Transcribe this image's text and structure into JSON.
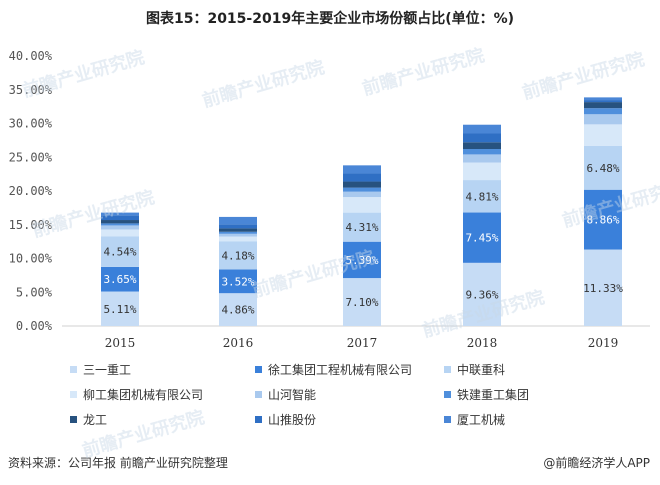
{
  "title": "图表15：2015-2019年主要企业市场份额占比(单位：%)",
  "source": "资料来源：公司年报 前瞻产业研究院整理",
  "credit": "@前瞻经济学人APP",
  "watermark": "前瞻产业研究院",
  "chart_data": {
    "type": "bar",
    "stacked": true,
    "categories": [
      "2015",
      "2016",
      "2017",
      "2018",
      "2019"
    ],
    "ylim": [
      0,
      40
    ],
    "ytick_labels": [
      "0.00%",
      "5.00%",
      "10.00%",
      "15.00%",
      "20.00%",
      "25.00%",
      "30.00%",
      "35.00%",
      "40.00%"
    ],
    "grid": false,
    "legend_position": "bottom",
    "series": [
      {
        "name": "三一重工",
        "color": "#c6dcf5",
        "values": [
          5.11,
          4.86,
          7.1,
          9.36,
          11.33
        ],
        "labels": [
          "5.11%",
          "4.86%",
          "7.10%",
          "9.36%",
          "11.33%"
        ]
      },
      {
        "name": "徐工集团工程机械有限公司",
        "color": "#3a80da",
        "values": [
          3.65,
          3.52,
          5.39,
          7.45,
          8.86
        ],
        "labels": [
          "3.65%",
          "3.52%",
          "5.39%",
          "7.45%",
          "8.86%"
        ]
      },
      {
        "name": "中联重科",
        "color": "#b7d4f3",
        "values": [
          4.54,
          4.18,
          4.31,
          4.81,
          6.48
        ],
        "labels": [
          "4.54%",
          "4.18%",
          "4.31%",
          "4.81%",
          "6.48%"
        ]
      },
      {
        "name": "柳工集团机械有限公司",
        "color": "#d7e8f9",
        "values": [
          1.0,
          0.7,
          2.3,
          2.6,
          3.2
        ],
        "labels": []
      },
      {
        "name": "山河智能",
        "color": "#a9c9ee",
        "values": [
          0.6,
          0.4,
          0.8,
          1.2,
          1.5
        ],
        "labels": []
      },
      {
        "name": "铁建重工集团",
        "color": "#4f8fdc",
        "values": [
          0.3,
          0.3,
          0.6,
          0.8,
          0.9
        ],
        "labels": []
      },
      {
        "name": "龙工",
        "color": "#27527f",
        "values": [
          0.5,
          0.5,
          0.9,
          1.0,
          0.9
        ],
        "labels": []
      },
      {
        "name": "山推股份",
        "color": "#2f6fc4",
        "values": [
          0.7,
          0.6,
          1.2,
          1.3,
          0.3
        ],
        "labels": []
      },
      {
        "name": "厦工机械",
        "color": "#4a86d6",
        "values": [
          0.4,
          1.1,
          1.2,
          1.3,
          0.4
        ],
        "labels": []
      }
    ]
  }
}
